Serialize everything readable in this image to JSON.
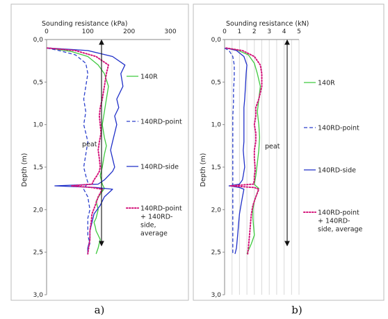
{
  "chart_data": [
    {
      "type": "line",
      "panel_label": "a)",
      "xlabel": "Sounding resistance (kPa)",
      "ylabel": "Depth (m)",
      "xlim": [
        0,
        300
      ],
      "ylim": [
        0,
        3
      ],
      "y_inverted": true,
      "x_ticks": [
        "0",
        "100",
        "200",
        "300"
      ],
      "y_ticks": [
        "0,0",
        "0,5",
        "1,0",
        "1,5",
        "2,0",
        "2,5",
        "3,0"
      ],
      "grid": false,
      "legend_position": "right",
      "annotation": {
        "text": "peat",
        "arrow_from_depth": 0.03,
        "arrow_to_depth": 2.4
      },
      "series": [
        {
          "name": "140R",
          "color": "#3ec93e",
          "dash": "solid",
          "x": [
            5,
            60,
            100,
            125,
            140,
            150,
            145,
            140,
            135,
            140,
            145,
            140,
            135,
            130,
            135,
            140,
            130,
            120,
            125,
            120,
            115,
            118,
            120,
            125,
            130,
            125,
            120
          ],
          "y": [
            0.1,
            0.14,
            0.2,
            0.3,
            0.4,
            0.55,
            0.7,
            0.85,
            1.0,
            1.15,
            1.25,
            1.35,
            1.5,
            1.6,
            1.7,
            1.75,
            1.82,
            1.9,
            2.0,
            2.1,
            2.15,
            2.2,
            2.25,
            2.3,
            2.35,
            2.45,
            2.52
          ]
        },
        {
          "name": "140RD-point",
          "color": "#2a3fcc",
          "dash": "dashed",
          "x": [
            0,
            30,
            70,
            95,
            100,
            95,
            90,
            95,
            90,
            95,
            100,
            95,
            90,
            95,
            100,
            95,
            90,
            100,
            105,
            100,
            100,
            100,
            105,
            100,
            100
          ],
          "y": [
            0.1,
            0.13,
            0.18,
            0.28,
            0.4,
            0.55,
            0.7,
            0.85,
            1.0,
            1.1,
            1.2,
            1.35,
            1.5,
            1.6,
            1.68,
            1.72,
            1.76,
            1.85,
            2.0,
            2.1,
            2.2,
            2.3,
            2.4,
            2.45,
            2.52
          ]
        },
        {
          "name": "140RD-side",
          "color": "#1f2fc8",
          "dash": "solid",
          "x": [
            5,
            100,
            160,
            190,
            180,
            185,
            170,
            175,
            165,
            170,
            165,
            160,
            155,
            160,
            165,
            160,
            150,
            140,
            125,
            20,
            120,
            160,
            140,
            130,
            115,
            110,
            105,
            105,
            100,
            100
          ],
          "y": [
            0.1,
            0.13,
            0.2,
            0.3,
            0.4,
            0.55,
            0.7,
            0.8,
            0.9,
            1.0,
            1.1,
            1.2,
            1.3,
            1.4,
            1.5,
            1.55,
            1.6,
            1.65,
            1.7,
            1.72,
            1.74,
            1.76,
            1.85,
            1.95,
            2.05,
            2.15,
            2.25,
            2.35,
            2.45,
            2.52
          ]
        },
        {
          "name": "140RD-point\n+ 140RD-\nside,\naverage",
          "color": "#d4147a",
          "dash": "dotted",
          "x": [
            2,
            70,
            120,
            150,
            145,
            140,
            135,
            130,
            128,
            130,
            132,
            128,
            125,
            128,
            130,
            128,
            122,
            115,
            110,
            60,
            110,
            135,
            125,
            118,
            110,
            108,
            105,
            105,
            102,
            100
          ],
          "y": [
            0.1,
            0.13,
            0.2,
            0.3,
            0.4,
            0.55,
            0.7,
            0.8,
            0.9,
            1.0,
            1.1,
            1.2,
            1.3,
            1.4,
            1.5,
            1.55,
            1.6,
            1.65,
            1.7,
            1.72,
            1.74,
            1.76,
            1.85,
            1.95,
            2.05,
            2.15,
            2.25,
            2.35,
            2.45,
            2.52
          ]
        }
      ]
    },
    {
      "type": "line",
      "panel_label": "b)",
      "xlabel": "Sounding resistance (kN)",
      "ylabel": "Depth (m)",
      "xlim": [
        0,
        5
      ],
      "ylim": [
        0,
        3
      ],
      "y_inverted": true,
      "x_ticks": [
        "0",
        "1",
        "2",
        "3",
        "4",
        "5"
      ],
      "y_ticks": [
        "0,0",
        "0,5",
        "1,0",
        "1,5",
        "2,0",
        "2,5",
        "3,0"
      ],
      "grid": true,
      "legend_position": "right",
      "annotation": {
        "text": "peat",
        "arrow_from_depth": 0.03,
        "arrow_to_depth": 2.4
      },
      "series": [
        {
          "name": "140R",
          "color": "#3ec93e",
          "dash": "solid",
          "x": [
            0.1,
            0.8,
            1.6,
            2.0,
            2.2,
            2.4,
            2.3,
            2.2,
            2.3,
            2.35,
            2.3,
            2.2,
            2.1,
            2.0,
            2.1,
            2.3,
            2.2,
            2.0,
            1.9,
            1.9,
            1.95,
            2.0,
            1.8,
            1.6,
            1.5
          ],
          "y": [
            0.1,
            0.12,
            0.18,
            0.28,
            0.4,
            0.55,
            0.7,
            0.85,
            1.0,
            1.15,
            1.3,
            1.45,
            1.6,
            1.7,
            1.72,
            1.75,
            1.8,
            1.9,
            2.0,
            2.1,
            2.2,
            2.3,
            2.4,
            2.48,
            2.52
          ]
        },
        {
          "name": "140RD-point",
          "color": "#2a3fcc",
          "dash": "dashed",
          "x": [
            0.0,
            0.3,
            0.55,
            0.65,
            0.65,
            0.6,
            0.6,
            0.55,
            0.55,
            0.55,
            0.55,
            0.55,
            0.55,
            0.55,
            0.55,
            0.55,
            0.55,
            0.55,
            0.55,
            0.55,
            0.55,
            0.55
          ],
          "y": [
            0.1,
            0.13,
            0.2,
            0.3,
            0.45,
            0.6,
            0.75,
            0.9,
            1.05,
            1.2,
            1.35,
            1.5,
            1.6,
            1.7,
            1.75,
            1.85,
            2.0,
            2.15,
            2.3,
            2.4,
            2.48,
            2.52
          ]
        },
        {
          "name": "140RD-side",
          "color": "#1f2fc8",
          "dash": "solid",
          "x": [
            0.1,
            0.8,
            1.3,
            1.5,
            1.45,
            1.4,
            1.35,
            1.3,
            1.3,
            1.3,
            1.3,
            1.3,
            1.25,
            1.3,
            1.35,
            1.3,
            1.25,
            1.2,
            1.0,
            0.3,
            1.0,
            1.3,
            1.2,
            1.1,
            1.0,
            0.95,
            0.9,
            0.85,
            0.8,
            0.7
          ],
          "y": [
            0.1,
            0.13,
            0.2,
            0.3,
            0.4,
            0.55,
            0.7,
            0.8,
            0.9,
            1.0,
            1.1,
            1.2,
            1.3,
            1.4,
            1.5,
            1.55,
            1.6,
            1.65,
            1.7,
            1.72,
            1.74,
            1.76,
            1.85,
            1.95,
            2.05,
            2.15,
            2.25,
            2.35,
            2.45,
            2.52
          ]
        },
        {
          "name": "140RD-point\n+ 140RD-\nside, average",
          "color": "#d4147a",
          "dash": "dotted",
          "x": [
            0.1,
            1.2,
            2.0,
            2.4,
            2.5,
            2.5,
            2.3,
            2.1,
            2.1,
            2.0,
            2.1,
            2.1,
            2.0,
            2.0,
            2.05,
            2.05,
            2.0,
            2.0,
            1.95,
            0.4,
            2.0,
            2.3,
            2.1,
            1.9,
            1.8,
            1.75,
            1.7,
            1.65,
            1.6,
            1.55
          ],
          "y": [
            0.1,
            0.13,
            0.2,
            0.3,
            0.4,
            0.55,
            0.7,
            0.8,
            0.9,
            1.0,
            1.1,
            1.2,
            1.3,
            1.4,
            1.5,
            1.55,
            1.6,
            1.65,
            1.7,
            1.72,
            1.74,
            1.76,
            1.85,
            1.95,
            2.05,
            2.15,
            2.25,
            2.35,
            2.45,
            2.52
          ]
        }
      ]
    }
  ]
}
